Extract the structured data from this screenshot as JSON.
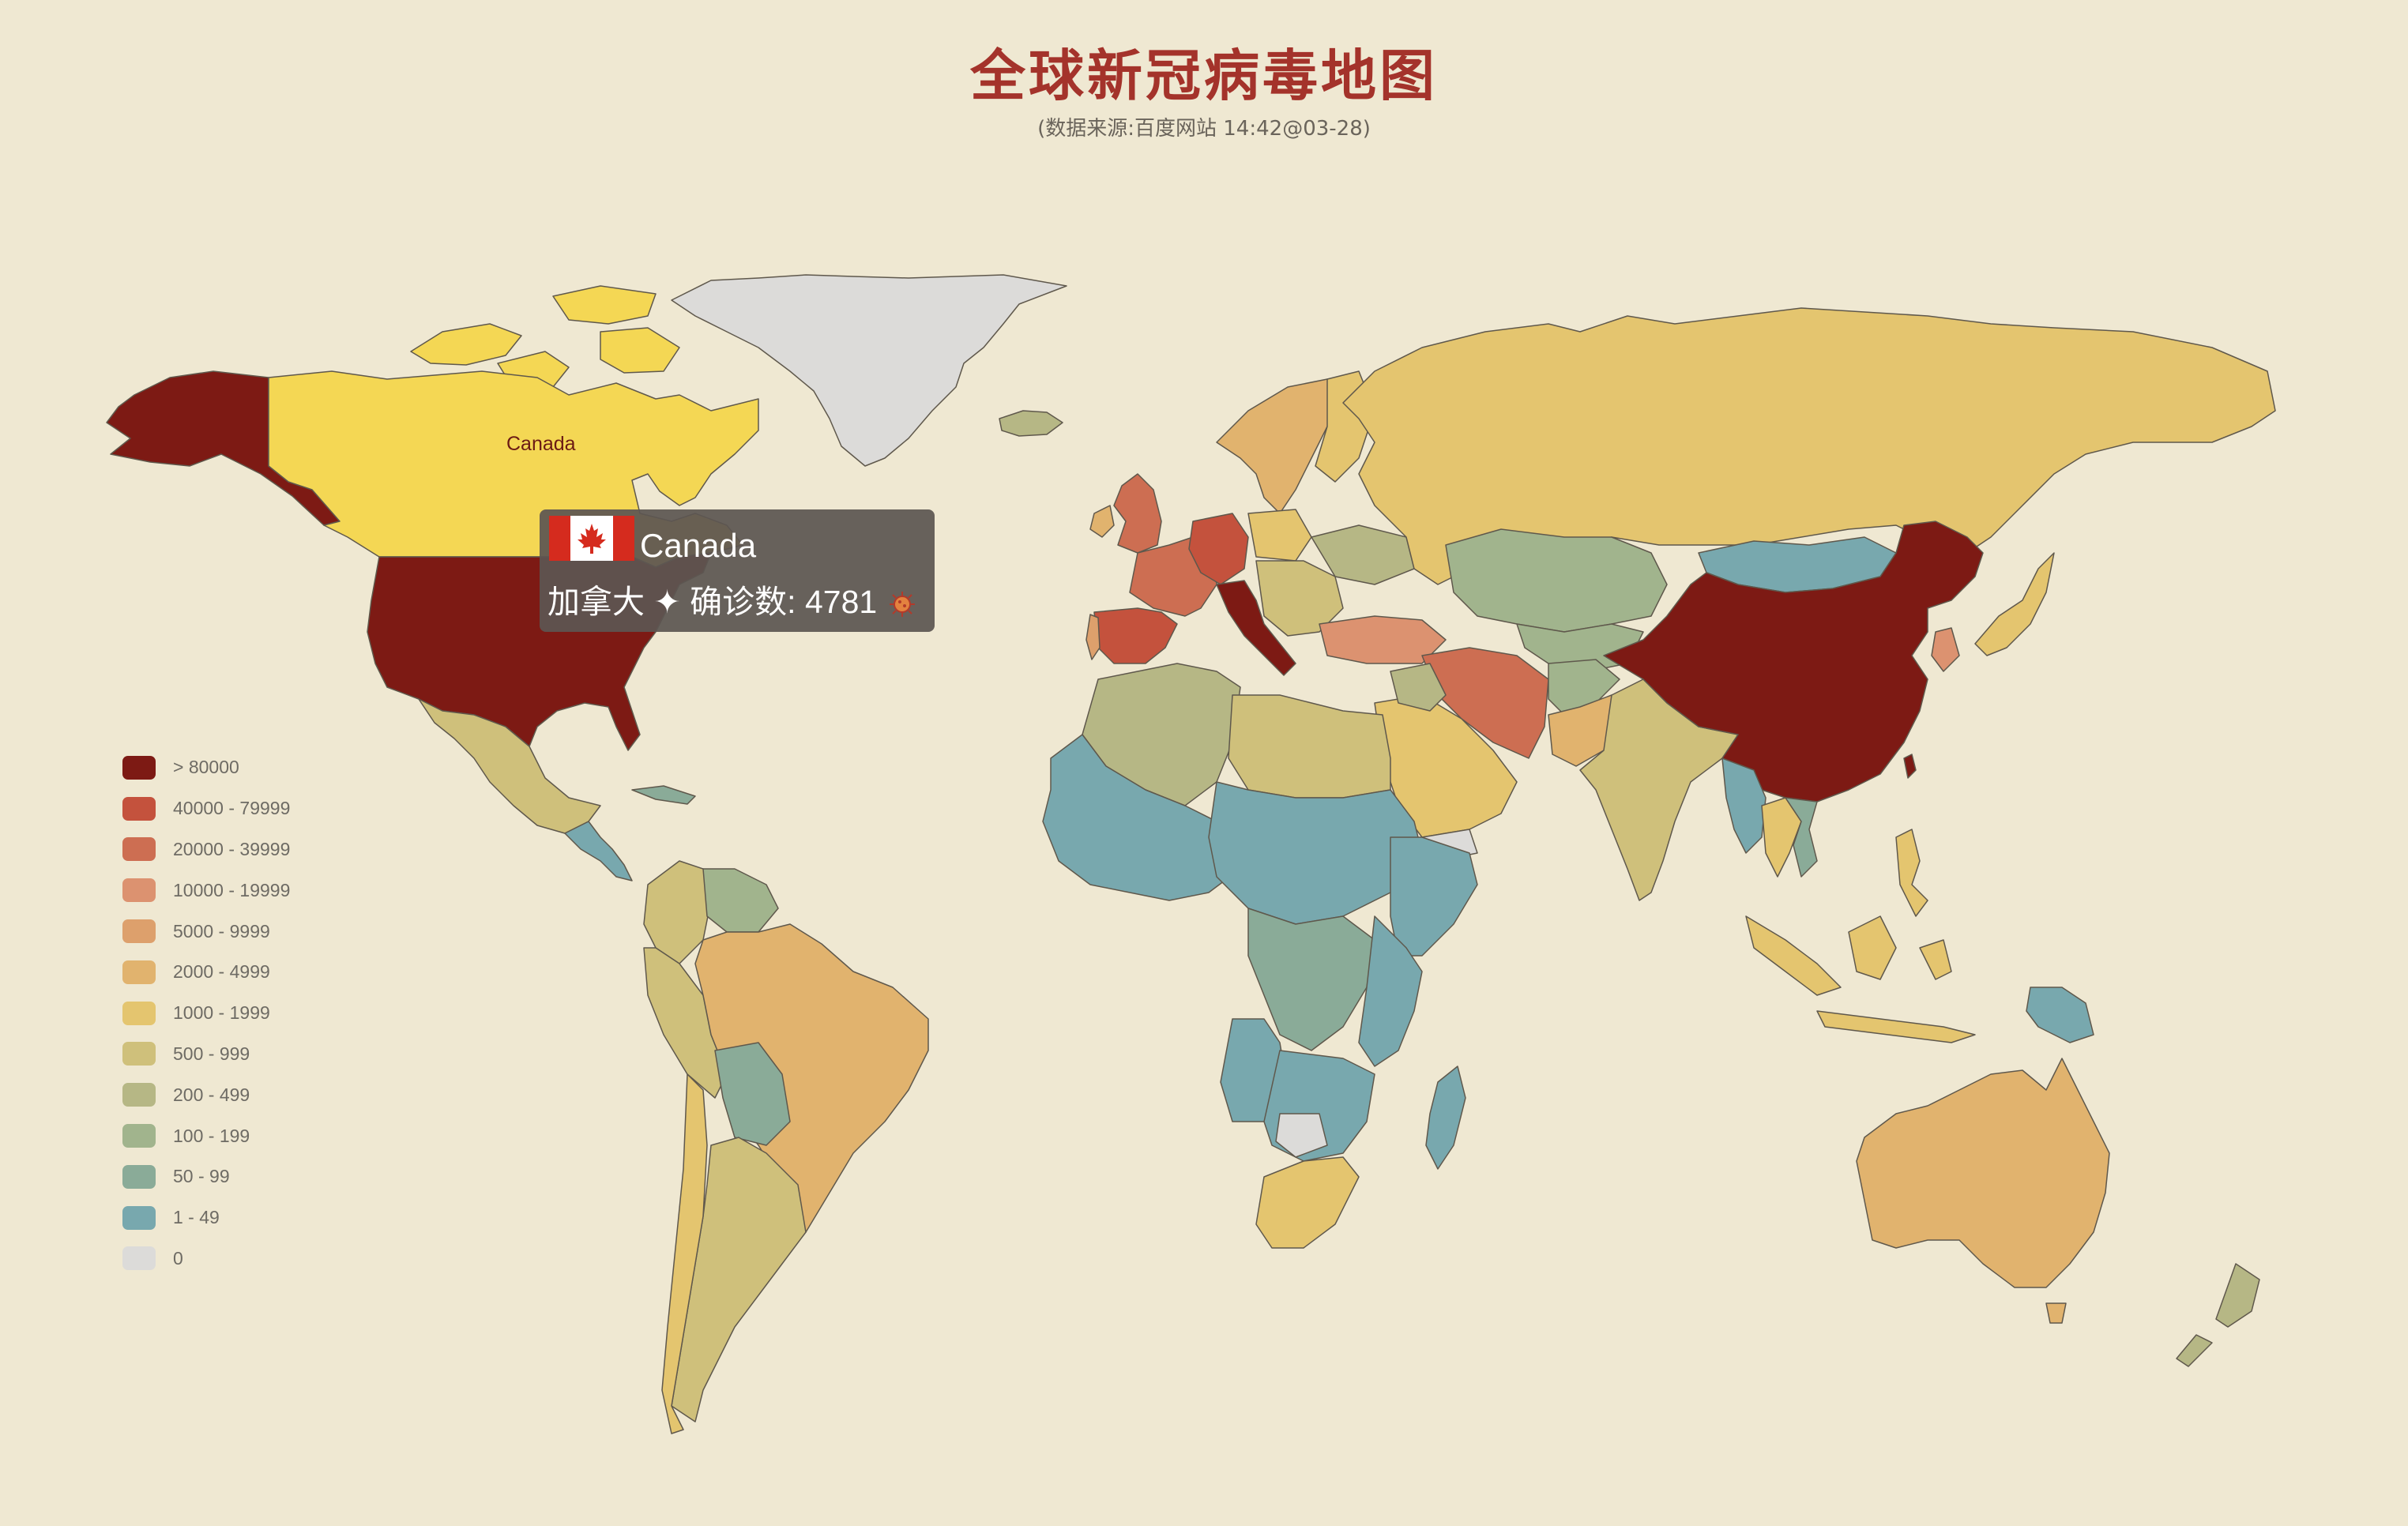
{
  "header": {
    "title": "全球新冠病毒地图",
    "subtitle": "(数据来源:百度网站 14:42@03-28)"
  },
  "legend": {
    "items": [
      {
        "label": "> 80000",
        "color": "#7d1a14"
      },
      {
        "label": "40000 - 79999",
        "color": "#c4523d"
      },
      {
        "label": "20000 - 39999",
        "color": "#cd6e52"
      },
      {
        "label": "10000 - 19999",
        "color": "#dc9270"
      },
      {
        "label": "5000 - 9999",
        "color": "#dda06c"
      },
      {
        "label": "2000 - 4999",
        "color": "#e1b36e"
      },
      {
        "label": "1000 - 1999",
        "color": "#e4c56f"
      },
      {
        "label": "500 - 999",
        "color": "#cfc07b"
      },
      {
        "label": "200 - 499",
        "color": "#b6b785"
      },
      {
        "label": "100 - 199",
        "color": "#a1b48d"
      },
      {
        "label": "50 - 99",
        "color": "#8aab98"
      },
      {
        "label": "1 - 49",
        "color": "#78a8ae"
      },
      {
        "label": "0",
        "color": "#dcdbd9"
      }
    ]
  },
  "map": {
    "hover_label": "Canada",
    "background_color": "#efe8d2"
  },
  "tooltip": {
    "country_en": "Canada",
    "country_cn": "加拿大",
    "separator": "✦",
    "confirmed_label": "确诊数:",
    "confirmed_value": "4781",
    "flag_icon": "canada-flag-icon",
    "virus_icon": "virus-icon"
  }
}
